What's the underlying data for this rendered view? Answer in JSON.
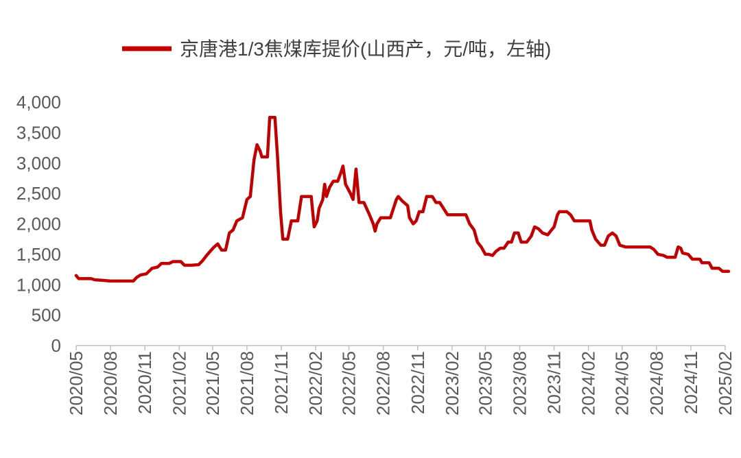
{
  "chart_data": {
    "type": "line",
    "title": "",
    "xlabel": "",
    "ylabel": "",
    "ylim": [
      0,
      4000
    ],
    "y_ticks": [
      "0",
      "500",
      "1,000",
      "1,500",
      "2,000",
      "2,500",
      "3,000",
      "3,500",
      "4,000"
    ],
    "x_tick_labels": [
      "2020/05",
      "2020/08",
      "2020/11",
      "2021/02",
      "2021/05",
      "2021/08",
      "2021/11",
      "2022/02",
      "2022/05",
      "2022/08",
      "2022/11",
      "2023/02",
      "2023/05",
      "2023/08",
      "2023/11",
      "2024/02",
      "2024/05",
      "2024/08",
      "2024/11",
      "2025/02"
    ],
    "x_range": [
      "2020/05",
      "2025/02"
    ],
    "grid": false,
    "legend_position": "top",
    "series": [
      {
        "name": "京唐港1/3焦煤库提价(山西产，元/吨，左轴)",
        "color": "#C00000",
        "points": [
          [
            "2020-05-01",
            1150
          ],
          [
            "2020-05-08",
            1100
          ],
          [
            "2020-05-20",
            1100
          ],
          [
            "2020-06-10",
            1100
          ],
          [
            "2020-06-20",
            1080
          ],
          [
            "2020-07-15",
            1070
          ],
          [
            "2020-08-01",
            1060
          ],
          [
            "2020-08-20",
            1060
          ],
          [
            "2020-09-10",
            1060
          ],
          [
            "2020-10-01",
            1060
          ],
          [
            "2020-10-10",
            1120
          ],
          [
            "2020-10-20",
            1160
          ],
          [
            "2020-11-05",
            1180
          ],
          [
            "2020-11-20",
            1270
          ],
          [
            "2020-12-05",
            1290
          ],
          [
            "2020-12-15",
            1350
          ],
          [
            "2021-01-05",
            1350
          ],
          [
            "2021-01-15",
            1380
          ],
          [
            "2021-02-05",
            1380
          ],
          [
            "2021-02-15",
            1320
          ],
          [
            "2021-03-05",
            1320
          ],
          [
            "2021-03-25",
            1330
          ],
          [
            "2021-04-05",
            1400
          ],
          [
            "2021-04-15",
            1480
          ],
          [
            "2021-04-25",
            1550
          ],
          [
            "2021-05-05",
            1620
          ],
          [
            "2021-05-15",
            1670
          ],
          [
            "2021-05-25",
            1570
          ],
          [
            "2021-06-05",
            1570
          ],
          [
            "2021-06-15",
            1850
          ],
          [
            "2021-06-25",
            1900
          ],
          [
            "2021-07-05",
            2050
          ],
          [
            "2021-07-20",
            2100
          ],
          [
            "2021-08-01",
            2400
          ],
          [
            "2021-08-10",
            2450
          ],
          [
            "2021-08-20",
            3050
          ],
          [
            "2021-08-28",
            3300
          ],
          [
            "2021-09-05",
            3200
          ],
          [
            "2021-09-10",
            3100
          ],
          [
            "2021-09-25",
            3100
          ],
          [
            "2021-10-01",
            3750
          ],
          [
            "2021-10-15",
            3750
          ],
          [
            "2021-10-22",
            3100
          ],
          [
            "2021-10-30",
            2200
          ],
          [
            "2021-11-05",
            1750
          ],
          [
            "2021-11-18",
            1750
          ],
          [
            "2021-11-28",
            2050
          ],
          [
            "2021-12-15",
            2050
          ],
          [
            "2021-12-25",
            2450
          ],
          [
            "2022-01-20",
            2450
          ],
          [
            "2022-01-28",
            1950
          ],
          [
            "2022-02-05",
            2050
          ],
          [
            "2022-02-10",
            2250
          ],
          [
            "2022-02-20",
            2400
          ],
          [
            "2022-02-25",
            2650
          ],
          [
            "2022-03-02",
            2450
          ],
          [
            "2022-03-10",
            2600
          ],
          [
            "2022-03-20",
            2700
          ],
          [
            "2022-04-01",
            2700
          ],
          [
            "2022-04-10",
            2850
          ],
          [
            "2022-04-15",
            2950
          ],
          [
            "2022-04-22",
            2650
          ],
          [
            "2022-05-05",
            2500
          ],
          [
            "2022-05-12",
            2400
          ],
          [
            "2022-05-20",
            2900
          ],
          [
            "2022-05-28",
            2350
          ],
          [
            "2022-06-10",
            2350
          ],
          [
            "2022-06-25",
            2150
          ],
          [
            "2022-07-05",
            2000
          ],
          [
            "2022-07-10",
            1880
          ],
          [
            "2022-07-15",
            2000
          ],
          [
            "2022-07-25",
            2100
          ],
          [
            "2022-08-20",
            2100
          ],
          [
            "2022-09-05",
            2400
          ],
          [
            "2022-09-10",
            2450
          ],
          [
            "2022-09-20",
            2380
          ],
          [
            "2022-10-05",
            2300
          ],
          [
            "2022-10-10",
            2100
          ],
          [
            "2022-10-20",
            2000
          ],
          [
            "2022-10-28",
            2050
          ],
          [
            "2022-11-05",
            2200
          ],
          [
            "2022-11-15",
            2200
          ],
          [
            "2022-11-25",
            2450
          ],
          [
            "2022-12-10",
            2450
          ],
          [
            "2022-12-20",
            2350
          ],
          [
            "2022-12-30",
            2350
          ],
          [
            "2023-01-20",
            2150
          ],
          [
            "2023-02-20",
            2150
          ],
          [
            "2023-03-10",
            2150
          ],
          [
            "2023-03-20",
            2000
          ],
          [
            "2023-04-01",
            1900
          ],
          [
            "2023-04-10",
            1700
          ],
          [
            "2023-04-20",
            1620
          ],
          [
            "2023-05-01",
            1500
          ],
          [
            "2023-05-10",
            1500
          ],
          [
            "2023-05-20",
            1480
          ],
          [
            "2023-05-30",
            1550
          ],
          [
            "2023-06-10",
            1600
          ],
          [
            "2023-06-20",
            1600
          ],
          [
            "2023-07-01",
            1700
          ],
          [
            "2023-07-10",
            1700
          ],
          [
            "2023-07-18",
            1850
          ],
          [
            "2023-07-28",
            1850
          ],
          [
            "2023-08-05",
            1700
          ],
          [
            "2023-08-20",
            1700
          ],
          [
            "2023-09-01",
            1800
          ],
          [
            "2023-09-10",
            1950
          ],
          [
            "2023-09-20",
            1920
          ],
          [
            "2023-10-01",
            1850
          ],
          [
            "2023-10-15",
            1820
          ],
          [
            "2023-10-25",
            1900
          ],
          [
            "2023-11-01",
            1950
          ],
          [
            "2023-11-10",
            2150
          ],
          [
            "2023-11-15",
            2200
          ],
          [
            "2023-12-05",
            2200
          ],
          [
            "2023-12-15",
            2150
          ],
          [
            "2023-12-25",
            2050
          ],
          [
            "2024-01-10",
            2050
          ],
          [
            "2024-02-05",
            2050
          ],
          [
            "2024-02-10",
            1900
          ],
          [
            "2024-02-20",
            1750
          ],
          [
            "2024-03-05",
            1650
          ],
          [
            "2024-03-15",
            1650
          ],
          [
            "2024-03-25",
            1800
          ],
          [
            "2024-04-05",
            1850
          ],
          [
            "2024-04-15",
            1800
          ],
          [
            "2024-04-25",
            1650
          ],
          [
            "2024-05-10",
            1620
          ],
          [
            "2024-06-20",
            1620
          ],
          [
            "2024-07-15",
            1620
          ],
          [
            "2024-07-25",
            1580
          ],
          [
            "2024-08-05",
            1500
          ],
          [
            "2024-08-20",
            1480
          ],
          [
            "2024-08-30",
            1450
          ],
          [
            "2024-09-20",
            1450
          ],
          [
            "2024-09-28",
            1620
          ],
          [
            "2024-10-05",
            1600
          ],
          [
            "2024-10-10",
            1520
          ],
          [
            "2024-10-25",
            1500
          ],
          [
            "2024-11-05",
            1420
          ],
          [
            "2024-11-25",
            1420
          ],
          [
            "2024-12-01",
            1360
          ],
          [
            "2024-12-20",
            1360
          ],
          [
            "2024-12-28",
            1270
          ],
          [
            "2025-01-15",
            1270
          ],
          [
            "2025-01-25",
            1220
          ],
          [
            "2025-02-10",
            1220
          ]
        ]
      }
    ]
  }
}
